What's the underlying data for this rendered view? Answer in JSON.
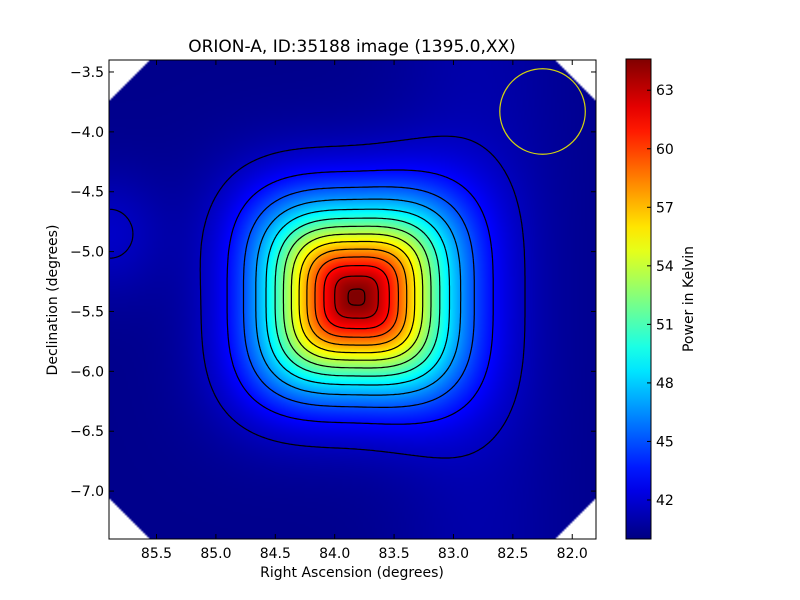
{
  "chart_data": {
    "type": "heatmap",
    "title": "ORION-A, ID:35188 image (1395.0,XX)",
    "xlabel": "Right Ascension (degrees)",
    "ylabel": "Declination (degrees)",
    "xlim": [
      85.9,
      81.8
    ],
    "ylim": [
      -7.4,
      -3.4
    ],
    "x_ticks": [
      85.5,
      85.0,
      84.5,
      84.0,
      83.5,
      83.0,
      82.5,
      82.0
    ],
    "x_tick_labels": [
      "85.5",
      "85.0",
      "84.5",
      "84.0",
      "83.5",
      "83.0",
      "82.5",
      "82.0"
    ],
    "y_ticks": [
      -3.5,
      -4.0,
      -4.5,
      -5.0,
      -5.5,
      -6.0,
      -6.5,
      -7.0
    ],
    "y_tick_labels": [
      "−3.5",
      "−4.0",
      "−4.5",
      "−5.0",
      "−5.5",
      "−6.0",
      "−6.5",
      "−7.0"
    ],
    "colormap": "jet",
    "colorbar": {
      "label": "Power in Kelvin",
      "range": [
        40.0,
        64.6
      ],
      "ticks": [
        42,
        45,
        48,
        51,
        54,
        57,
        60,
        63
      ],
      "tick_labels": [
        "42",
        "45",
        "48",
        "51",
        "54",
        "57",
        "60",
        "63"
      ]
    },
    "peak": {
      "ra": 83.82,
      "dec": -5.38,
      "value": 64.6
    },
    "background_level": 40.3,
    "source_width_deg": [
      0.52,
      0.5
    ],
    "contours": {
      "color": "#000000",
      "levels": [
        41.5,
        43.2,
        45.0,
        46.8,
        48.6,
        50.4,
        52.2,
        54.0,
        55.8,
        57.6,
        59.4,
        61.2,
        63.0,
        64.4
      ]
    },
    "beam": {
      "ra": 82.25,
      "dec": -3.83,
      "radius_deg": 0.36,
      "color": "#d4d40e"
    },
    "grid": false
  }
}
